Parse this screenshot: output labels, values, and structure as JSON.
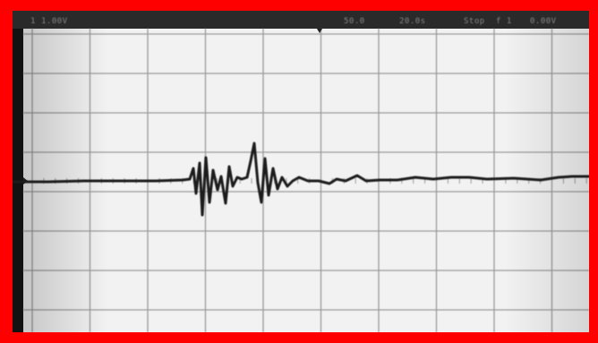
{
  "photo": {
    "frame_color": "#ff0000",
    "screen_color": "#f2f2f2",
    "grid_color": "#9a9a9a",
    "trace_color": "#1e1e1e",
    "grid": {
      "columns": 10,
      "rows": 8
    }
  },
  "readout": {
    "channel": "1",
    "volts_per_div": "1.00V",
    "time_per_div": "50.0",
    "delay": "20.0s",
    "mode": "Stop",
    "trigger": "f 1",
    "level": "0.00V"
  },
  "icons": [
    "trigger-marker-icon",
    "ground-marker-icon"
  ]
}
